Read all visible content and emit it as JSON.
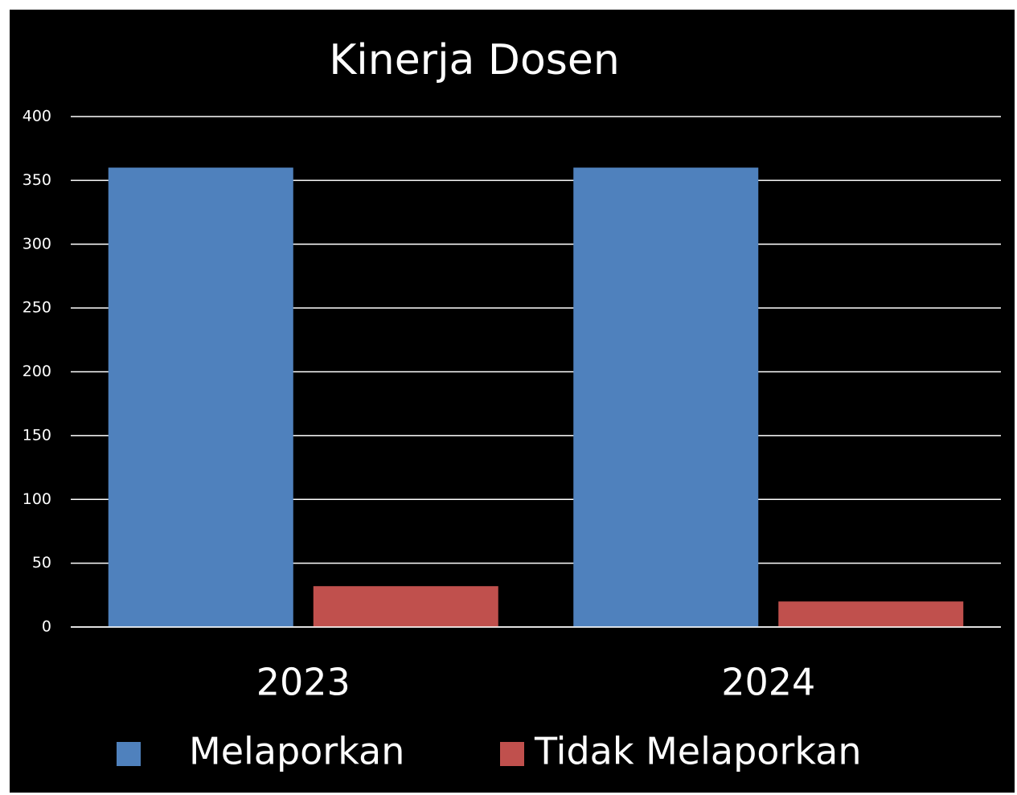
{
  "chart_data": {
    "type": "bar",
    "title": "Kinerja Dosen",
    "categories": [
      "2023",
      "2024"
    ],
    "series": [
      {
        "name": "Melaporkan",
        "color": "#4f81bd",
        "values": [
          360,
          360
        ]
      },
      {
        "name": "Tidak Melaporkan",
        "color": "#c0504d",
        "values": [
          32,
          20
        ]
      }
    ],
    "ylim": [
      0,
      400
    ],
    "yticks": [
      0,
      50,
      100,
      150,
      200,
      250,
      300,
      350,
      400
    ],
    "grid": true,
    "legend": "bottom"
  }
}
